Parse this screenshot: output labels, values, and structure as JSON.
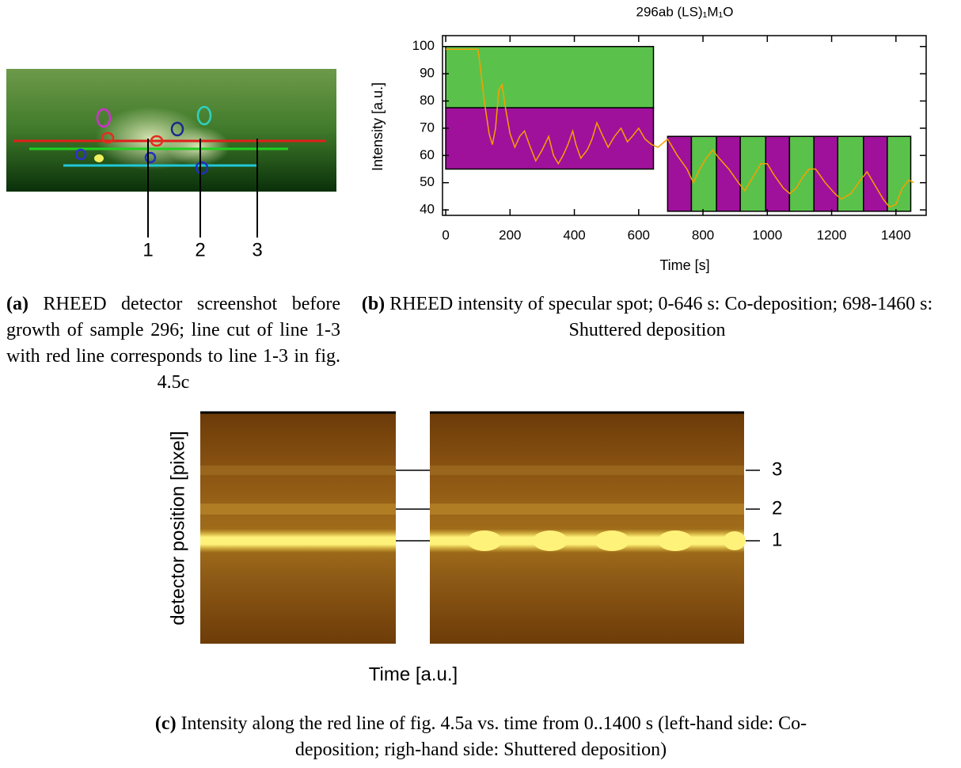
{
  "panel_a": {
    "line_labels": [
      "1",
      "2",
      "3"
    ]
  },
  "chart_data": {
    "type": "line",
    "title": "296ab (LS)₁M₁O",
    "xlabel": "Time [s]",
    "ylabel": "Intensity [a.u.]",
    "xlim": [
      -10,
      1494
    ],
    "ylim": [
      38,
      104
    ],
    "xticks": [
      0,
      200,
      400,
      600,
      800,
      1000,
      1200,
      1400
    ],
    "yticks": [
      40,
      50,
      60,
      70,
      80,
      90,
      100
    ],
    "regions": [
      {
        "x": [
          0,
          646
        ],
        "y": [
          77.5,
          100
        ],
        "color": "#5ac24b"
      },
      {
        "x": [
          0,
          646
        ],
        "y": [
          55,
          77.5
        ],
        "color": "#a0119b"
      },
      {
        "x": [
          690,
          764
        ],
        "y": [
          39.5,
          67
        ],
        "color": "#a0119b"
      },
      {
        "x": [
          764,
          842
        ],
        "y": [
          39.5,
          67
        ],
        "color": "#5ac24b"
      },
      {
        "x": [
          842,
          916
        ],
        "y": [
          39.5,
          67
        ],
        "color": "#a0119b"
      },
      {
        "x": [
          916,
          995
        ],
        "y": [
          39.5,
          67
        ],
        "color": "#5ac24b"
      },
      {
        "x": [
          995,
          1069
        ],
        "y": [
          39.5,
          67
        ],
        "color": "#a0119b"
      },
      {
        "x": [
          1069,
          1145
        ],
        "y": [
          39.5,
          67
        ],
        "color": "#5ac24b"
      },
      {
        "x": [
          1145,
          1219
        ],
        "y": [
          39.5,
          67
        ],
        "color": "#a0119b"
      },
      {
        "x": [
          1219,
          1299
        ],
        "y": [
          39.5,
          67
        ],
        "color": "#5ac24b"
      },
      {
        "x": [
          1299,
          1373
        ],
        "y": [
          39.5,
          67
        ],
        "color": "#a0119b"
      },
      {
        "x": [
          1373,
          1446
        ],
        "y": [
          39.5,
          67
        ],
        "color": "#5ac24b"
      }
    ],
    "x": [
      0,
      100,
      105,
      120,
      135,
      145,
      155,
      165,
      175,
      185,
      200,
      215,
      230,
      245,
      260,
      280,
      300,
      320,
      335,
      350,
      365,
      380,
      395,
      405,
      420,
      440,
      455,
      470,
      485,
      505,
      525,
      545,
      565,
      580,
      600,
      620,
      640,
      660,
      690,
      720,
      750,
      770,
      790,
      810,
      830,
      850,
      880,
      910,
      930,
      960,
      980,
      1000,
      1020,
      1050,
      1070,
      1090,
      1110,
      1130,
      1150,
      1180,
      1210,
      1230,
      1260,
      1290,
      1310,
      1330,
      1360,
      1380,
      1400,
      1420,
      1440,
      1455
    ],
    "series": [
      {
        "color": "#f5a000",
        "values": [
          99,
          99,
          95,
          80,
          68,
          64,
          70,
          84,
          86,
          78,
          68,
          63,
          67,
          69,
          64,
          58,
          62,
          67,
          60,
          57,
          60,
          64,
          69,
          64,
          59,
          62,
          66,
          72,
          68,
          63,
          67,
          70,
          65,
          67,
          70,
          66,
          64,
          63,
          66,
          60,
          55,
          50,
          55,
          59,
          62,
          59,
          55,
          50,
          47,
          53,
          57,
          57,
          53,
          48,
          46,
          48,
          52,
          55,
          55,
          50,
          46,
          44,
          46,
          51,
          54,
          50,
          44,
          41,
          42,
          48,
          51,
          50
        ]
      }
    ]
  },
  "panel_c": {
    "ylabel": "detector position [pixel]",
    "xlabel": "Time [a.u.]",
    "line_labels": [
      "3",
      "2",
      "1"
    ]
  },
  "captions": {
    "a": {
      "label": "(a)",
      "text": "RHEED detector screenshot before growth of sample 296; line cut of line 1-3 with red line corresponds to line 1-3 in fig. 4.5c"
    },
    "b": {
      "label": "(b)",
      "text": "RHEED intensity of specular spot; 0-646 s: Co-deposition; 698-1460 s: Shuttered deposition"
    },
    "c": {
      "label": "(c)",
      "text": "Intensity along the red line of fig. 4.5a vs. time from 0..1400 s (left-hand side: Co-deposition; righ-hand side: Shuttered deposition)"
    }
  }
}
